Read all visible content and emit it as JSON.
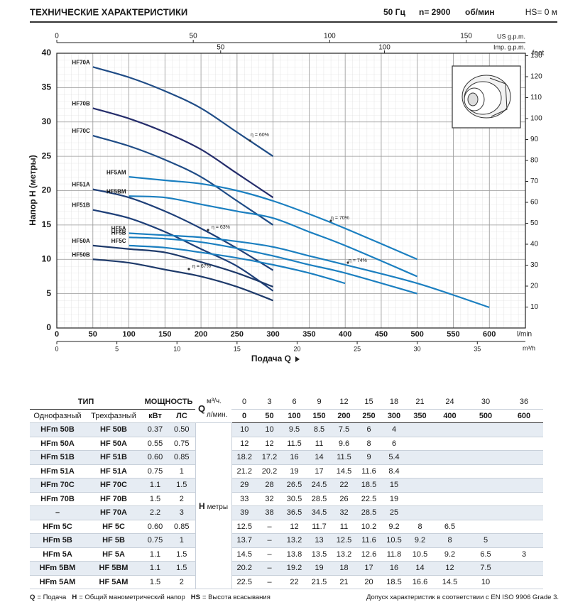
{
  "header": {
    "title": "ТЕХНИЧЕСКИЕ ХАРАКТЕРИСТИКИ",
    "freq": "50 Гц",
    "speed": "n= 2900",
    "speed_unit": "об/мин",
    "hs": "HS= 0 м"
  },
  "chart_data": {
    "type": "line",
    "y_label": "Напор H (метры)",
    "x_label": "Подача Q",
    "x_unit": "l/min",
    "xlim": [
      0,
      650
    ],
    "xticks": [
      0,
      50,
      100,
      150,
      200,
      250,
      300,
      350,
      400,
      450,
      500,
      550,
      600
    ],
    "ylim": [
      0,
      40
    ],
    "yticks": [
      0,
      5,
      10,
      15,
      20,
      25,
      30,
      35,
      40
    ],
    "y2_unit": "feet",
    "y2lim": [
      0,
      131.2
    ],
    "y2ticks": [
      10,
      20,
      30,
      40,
      50,
      60,
      70,
      80,
      90,
      100,
      110,
      120,
      130
    ],
    "m3h_axis": {
      "unit": "m³/h",
      "lim": [
        0,
        39
      ],
      "ticks": [
        0,
        5,
        10,
        15,
        20,
        25,
        30,
        35
      ]
    },
    "usgpm_axis": {
      "unit": "US g.p.m.",
      "lim": [
        0,
        171.7
      ],
      "ticks": [
        0,
        50,
        100,
        150
      ]
    },
    "impgpm_axis": {
      "unit": "Imp. g.p.m.",
      "lim": [
        0,
        143
      ],
      "ticks": [
        50,
        100
      ]
    },
    "grid": true,
    "annotations": [
      "η = 60%",
      "η = 70%",
      "η = 63%",
      "η = 74%",
      "η = 67%"
    ],
    "series": [
      {
        "name": "HF70A",
        "color": "#1f4c86",
        "x": [
          50,
          100,
          150,
          200,
          250,
          300
        ],
        "values": [
          38,
          36.5,
          34.5,
          32,
          28.5,
          25
        ]
      },
      {
        "name": "HF70B",
        "color": "#252d6b",
        "x": [
          50,
          100,
          150,
          200,
          250,
          300
        ],
        "values": [
          32,
          30.5,
          28.5,
          26,
          22.5,
          19
        ]
      },
      {
        "name": "HF70C",
        "color": "#1f4c86",
        "x": [
          50,
          100,
          150,
          200,
          250,
          300
        ],
        "values": [
          28,
          26.5,
          24.5,
          22,
          18.5,
          15
        ]
      },
      {
        "name": "HF51A",
        "color": "#1e3f78",
        "x": [
          50,
          100,
          150,
          200,
          250,
          300
        ],
        "values": [
          20.2,
          19,
          17,
          14.5,
          11.6,
          8.4
        ]
      },
      {
        "name": "HF51B",
        "color": "#1e3f78",
        "x": [
          50,
          100,
          150,
          200,
          250,
          300
        ],
        "values": [
          17.2,
          16,
          14,
          11.5,
          9,
          5.4
        ]
      },
      {
        "name": "HF50A",
        "color": "#1e3a6a",
        "x": [
          50,
          100,
          150,
          200,
          250,
          300
        ],
        "values": [
          12,
          11.5,
          11,
          9.6,
          8,
          6
        ]
      },
      {
        "name": "HF50B",
        "color": "#1e3a6a",
        "x": [
          50,
          100,
          150,
          200,
          250,
          300
        ],
        "values": [
          10,
          9.5,
          8.5,
          7.5,
          6,
          4
        ]
      },
      {
        "name": "HF5AM",
        "color": "#1b7fc0",
        "x": [
          100,
          150,
          200,
          250,
          300,
          350,
          400,
          500
        ],
        "values": [
          22,
          21.5,
          21,
          20,
          18.5,
          16.6,
          14.5,
          10
        ]
      },
      {
        "name": "HF5BM",
        "color": "#1b7fc0",
        "x": [
          100,
          150,
          200,
          250,
          300,
          350,
          400,
          500
        ],
        "values": [
          19.2,
          19,
          18,
          17,
          16,
          14,
          12,
          7.5
        ]
      },
      {
        "name": "HF5A",
        "color": "#1b7fc0",
        "x": [
          100,
          150,
          200,
          250,
          300,
          350,
          400,
          500,
          600
        ],
        "values": [
          13.8,
          13.5,
          13.2,
          12.6,
          11.8,
          10.5,
          9.2,
          6.5,
          3
        ]
      },
      {
        "name": "HF5B",
        "color": "#1b7fc0",
        "x": [
          100,
          150,
          200,
          250,
          300,
          350,
          400,
          500
        ],
        "values": [
          13.2,
          13,
          12.5,
          11.6,
          10.5,
          9.2,
          8,
          5
        ]
      },
      {
        "name": "HF5C",
        "color": "#1b7fc0",
        "x": [
          100,
          150,
          200,
          250,
          300,
          350,
          400
        ],
        "values": [
          12,
          11.7,
          11,
          10.2,
          9.2,
          8,
          6.5
        ]
      }
    ]
  },
  "table": {
    "header": {
      "type_label": "ТИП",
      "power_label": "МОЩНОСТЬ",
      "q_symbol": "Q",
      "q_unit_m3h": "м³/ч.",
      "q_unit_lmin": "л/мин.",
      "single_phase": "Однофазный",
      "three_phase": "Трехфазный",
      "kw": "кВт",
      "hp": "ЛС",
      "h_symbol": "H",
      "h_unit": "метры",
      "q_m3h": [
        0,
        3,
        6,
        9,
        12,
        15,
        18,
        21,
        24,
        30,
        36
      ],
      "q_lmin": [
        0,
        50,
        100,
        150,
        200,
        250,
        300,
        350,
        400,
        500,
        600
      ]
    },
    "rows": [
      {
        "single": "HFm 50B",
        "three": "HF 50B",
        "kw": "0.37",
        "hp": "0.50",
        "h": [
          10,
          10,
          9.5,
          8.5,
          7.5,
          6,
          4
        ]
      },
      {
        "single": "HFm 50A",
        "three": "HF 50A",
        "kw": "0.55",
        "hp": "0.75",
        "h": [
          12,
          12,
          11.5,
          11,
          9.6,
          8,
          6
        ]
      },
      {
        "single": "HFm 51B",
        "three": "HF 51B",
        "kw": "0.60",
        "hp": "0.85",
        "h": [
          18.2,
          17.2,
          16,
          14,
          11.5,
          9,
          5.4
        ]
      },
      {
        "single": "HFm 51A",
        "three": "HF 51A",
        "kw": "0.75",
        "hp": "1",
        "h": [
          21.2,
          20.2,
          19,
          17,
          14.5,
          11.6,
          8.4
        ]
      },
      {
        "single": "HFm 70C",
        "three": "HF 70C",
        "kw": "1.1",
        "hp": "1.5",
        "h": [
          29,
          28,
          26.5,
          24.5,
          22,
          18.5,
          15
        ]
      },
      {
        "single": "HFm 70B",
        "three": "HF 70B",
        "kw": "1.5",
        "hp": "2",
        "h": [
          33,
          32,
          30.5,
          28.5,
          26,
          22.5,
          19
        ]
      },
      {
        "single": "–",
        "three": "HF 70A",
        "kw": "2.2",
        "hp": "3",
        "h": [
          39,
          38,
          36.5,
          34.5,
          32,
          28.5,
          25
        ]
      },
      {
        "single": "HFm 5C",
        "three": "HF 5C",
        "kw": "0.60",
        "hp": "0.85",
        "h": [
          12.5,
          "–",
          12,
          11.7,
          11,
          10.2,
          9.2,
          8,
          6.5
        ]
      },
      {
        "single": "HFm 5B",
        "three": "HF 5B",
        "kw": "0.75",
        "hp": "1",
        "h": [
          13.7,
          "–",
          13.2,
          13,
          12.5,
          11.6,
          10.5,
          9.2,
          8,
          5
        ]
      },
      {
        "single": "HFm 5A",
        "three": "HF 5A",
        "kw": "1.1",
        "hp": "1.5",
        "h": [
          14.5,
          "–",
          13.8,
          13.5,
          13.2,
          12.6,
          11.8,
          10.5,
          9.2,
          6.5,
          3
        ]
      },
      {
        "single": "HFm 5BM",
        "three": "HF 5BM",
        "kw": "1.1",
        "hp": "1.5",
        "h": [
          20.2,
          "–",
          19.2,
          19,
          18,
          17,
          16,
          14,
          12,
          7.5
        ]
      },
      {
        "single": "HFm 5AM",
        "three": "HF 5AM",
        "kw": "1.5",
        "hp": "2",
        "h": [
          22.5,
          "–",
          22,
          21.5,
          21,
          20,
          18.5,
          16.6,
          14.5,
          10
        ]
      }
    ]
  },
  "footer": {
    "items": [
      {
        "symbol": "Q",
        "text": "= Подача"
      },
      {
        "symbol": "H",
        "text": "= Общий манометрический напор"
      },
      {
        "symbol": "HS",
        "text": "= Высота всасывания"
      }
    ],
    "note": "Допуск характеристик в соответствии с EN ISO 9906 Grade 3."
  }
}
